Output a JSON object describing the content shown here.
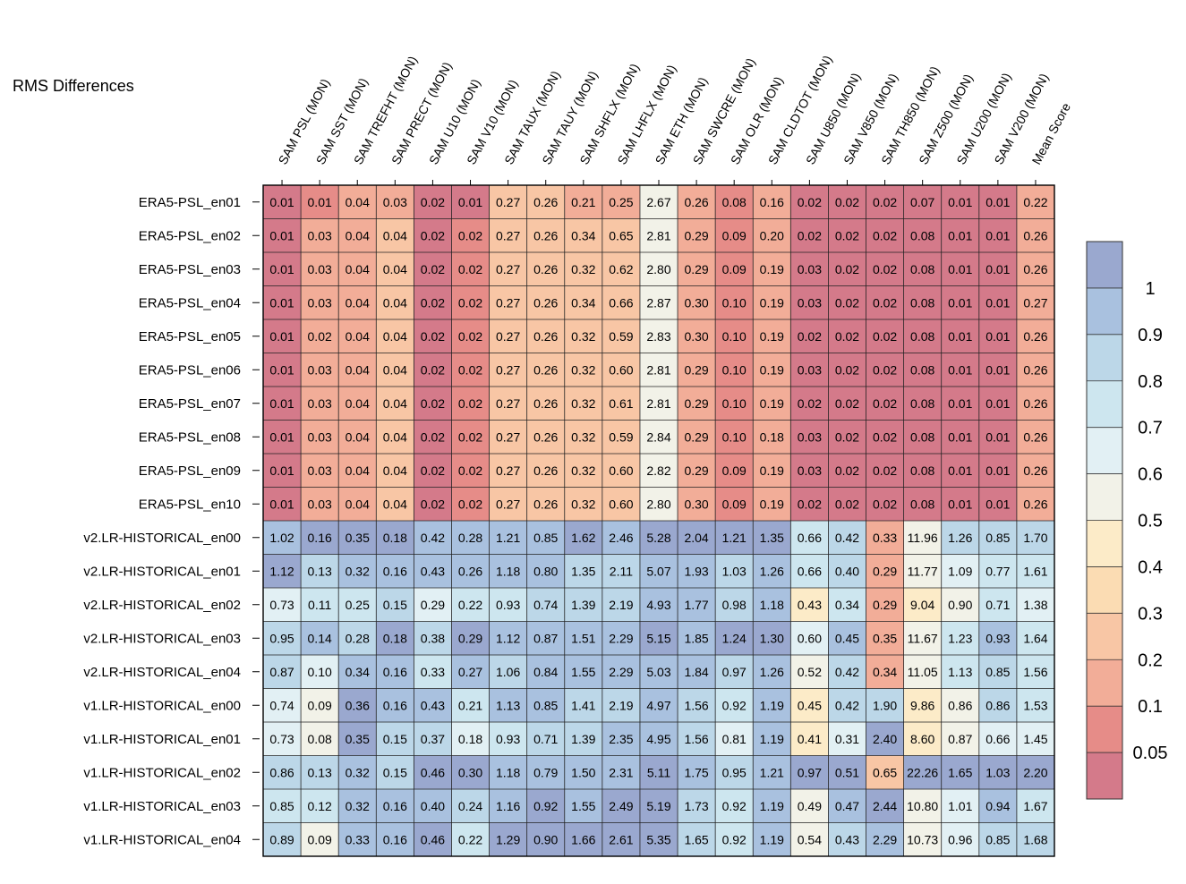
{
  "chart_data": {
    "type": "heatmap",
    "title": "RMS Differences",
    "columns": [
      "SAM PSL (MON)",
      "SAM SST (MON)",
      "SAM TREFHT (MON)",
      "SAM PRECT (MON)",
      "SAM U10 (MON)",
      "SAM V10 (MON)",
      "SAM TAUX (MON)",
      "SAM TAUY (MON)",
      "SAM SHFLX (MON)",
      "SAM LHFLX (MON)",
      "SAM ETH (MON)",
      "SAM SWCRE (MON)",
      "SAM OLR (MON)",
      "SAM CLDTOT (MON)",
      "SAM U850 (MON)",
      "SAM V850 (MON)",
      "SAM TH850 (MON)",
      "SAM Z500 (MON)",
      "SAM U200 (MON)",
      "SAM V200 (MON)",
      "Mean Score"
    ],
    "rows": [
      "ERA5-PSL_en01",
      "ERA5-PSL_en02",
      "ERA5-PSL_en03",
      "ERA5-PSL_en04",
      "ERA5-PSL_en05",
      "ERA5-PSL_en06",
      "ERA5-PSL_en07",
      "ERA5-PSL_en08",
      "ERA5-PSL_en09",
      "ERA5-PSL_en10",
      "v2.LR-HISTORICAL_en00",
      "v2.LR-HISTORICAL_en01",
      "v2.LR-HISTORICAL_en02",
      "v2.LR-HISTORICAL_en03",
      "v2.LR-HISTORICAL_en04",
      "v1.LR-HISTORICAL_en00",
      "v1.LR-HISTORICAL_en01",
      "v1.LR-HISTORICAL_en02",
      "v1.LR-HISTORICAL_en03",
      "v1.LR-HISTORICAL_en04"
    ],
    "values": [
      [
        "0.01",
        "0.01",
        "0.04",
        "0.03",
        "0.02",
        "0.01",
        "0.27",
        "0.26",
        "0.21",
        "0.25",
        "2.67",
        "0.26",
        "0.08",
        "0.16",
        "0.02",
        "0.02",
        "0.02",
        "0.07",
        "0.01",
        "0.01",
        "0.22"
      ],
      [
        "0.01",
        "0.03",
        "0.04",
        "0.04",
        "0.02",
        "0.02",
        "0.27",
        "0.26",
        "0.34",
        "0.65",
        "2.81",
        "0.29",
        "0.09",
        "0.20",
        "0.02",
        "0.02",
        "0.02",
        "0.08",
        "0.01",
        "0.01",
        "0.26"
      ],
      [
        "0.01",
        "0.03",
        "0.04",
        "0.04",
        "0.02",
        "0.02",
        "0.27",
        "0.26",
        "0.32",
        "0.62",
        "2.80",
        "0.29",
        "0.09",
        "0.19",
        "0.03",
        "0.02",
        "0.02",
        "0.08",
        "0.01",
        "0.01",
        "0.26"
      ],
      [
        "0.01",
        "0.03",
        "0.04",
        "0.04",
        "0.02",
        "0.02",
        "0.27",
        "0.26",
        "0.34",
        "0.66",
        "2.87",
        "0.30",
        "0.10",
        "0.19",
        "0.03",
        "0.02",
        "0.02",
        "0.08",
        "0.01",
        "0.01",
        "0.27"
      ],
      [
        "0.01",
        "0.02",
        "0.04",
        "0.04",
        "0.02",
        "0.02",
        "0.27",
        "0.26",
        "0.32",
        "0.59",
        "2.83",
        "0.30",
        "0.10",
        "0.19",
        "0.02",
        "0.02",
        "0.02",
        "0.08",
        "0.01",
        "0.01",
        "0.26"
      ],
      [
        "0.01",
        "0.03",
        "0.04",
        "0.04",
        "0.02",
        "0.02",
        "0.27",
        "0.26",
        "0.32",
        "0.60",
        "2.81",
        "0.29",
        "0.10",
        "0.19",
        "0.03",
        "0.02",
        "0.02",
        "0.08",
        "0.01",
        "0.01",
        "0.26"
      ],
      [
        "0.01",
        "0.03",
        "0.04",
        "0.04",
        "0.02",
        "0.02",
        "0.27",
        "0.26",
        "0.32",
        "0.61",
        "2.81",
        "0.29",
        "0.10",
        "0.19",
        "0.02",
        "0.02",
        "0.02",
        "0.08",
        "0.01",
        "0.01",
        "0.26"
      ],
      [
        "0.01",
        "0.03",
        "0.04",
        "0.04",
        "0.02",
        "0.02",
        "0.27",
        "0.26",
        "0.32",
        "0.59",
        "2.84",
        "0.29",
        "0.10",
        "0.18",
        "0.03",
        "0.02",
        "0.02",
        "0.08",
        "0.01",
        "0.01",
        "0.26"
      ],
      [
        "0.01",
        "0.03",
        "0.04",
        "0.04",
        "0.02",
        "0.02",
        "0.27",
        "0.26",
        "0.32",
        "0.60",
        "2.82",
        "0.29",
        "0.09",
        "0.19",
        "0.03",
        "0.02",
        "0.02",
        "0.08",
        "0.01",
        "0.01",
        "0.26"
      ],
      [
        "0.01",
        "0.03",
        "0.04",
        "0.04",
        "0.02",
        "0.02",
        "0.27",
        "0.26",
        "0.32",
        "0.60",
        "2.80",
        "0.30",
        "0.09",
        "0.19",
        "0.02",
        "0.02",
        "0.02",
        "0.08",
        "0.01",
        "0.01",
        "0.26"
      ],
      [
        "1.02",
        "0.16",
        "0.35",
        "0.18",
        "0.42",
        "0.28",
        "1.21",
        "0.85",
        "1.62",
        "2.46",
        "5.28",
        "2.04",
        "1.21",
        "1.35",
        "0.66",
        "0.42",
        "0.33",
        "11.96",
        "1.26",
        "0.85",
        "1.70"
      ],
      [
        "1.12",
        "0.13",
        "0.32",
        "0.16",
        "0.43",
        "0.26",
        "1.18",
        "0.80",
        "1.35",
        "2.11",
        "5.07",
        "1.93",
        "1.03",
        "1.26",
        "0.66",
        "0.40",
        "0.29",
        "11.77",
        "1.09",
        "0.77",
        "1.61"
      ],
      [
        "0.73",
        "0.11",
        "0.25",
        "0.15",
        "0.29",
        "0.22",
        "0.93",
        "0.74",
        "1.39",
        "2.19",
        "4.93",
        "1.77",
        "0.98",
        "1.18",
        "0.43",
        "0.34",
        "0.29",
        "9.04",
        "0.90",
        "0.71",
        "1.38"
      ],
      [
        "0.95",
        "0.14",
        "0.28",
        "0.18",
        "0.38",
        "0.29",
        "1.12",
        "0.87",
        "1.51",
        "2.29",
        "5.15",
        "1.85",
        "1.24",
        "1.30",
        "0.60",
        "0.45",
        "0.35",
        "11.67",
        "1.23",
        "0.93",
        "1.64"
      ],
      [
        "0.87",
        "0.10",
        "0.34",
        "0.16",
        "0.33",
        "0.27",
        "1.06",
        "0.84",
        "1.55",
        "2.29",
        "5.03",
        "1.84",
        "0.97",
        "1.26",
        "0.52",
        "0.42",
        "0.34",
        "11.05",
        "1.13",
        "0.85",
        "1.56"
      ],
      [
        "0.74",
        "0.09",
        "0.36",
        "0.16",
        "0.43",
        "0.21",
        "1.13",
        "0.85",
        "1.41",
        "2.19",
        "4.97",
        "1.56",
        "0.92",
        "1.19",
        "0.45",
        "0.42",
        "1.90",
        "9.86",
        "0.86",
        "0.86",
        "1.53"
      ],
      [
        "0.73",
        "0.08",
        "0.35",
        "0.15",
        "0.37",
        "0.18",
        "0.93",
        "0.71",
        "1.39",
        "2.35",
        "4.95",
        "1.56",
        "0.81",
        "1.19",
        "0.41",
        "0.31",
        "2.40",
        "8.60",
        "0.87",
        "0.66",
        "1.45"
      ],
      [
        "0.86",
        "0.13",
        "0.32",
        "0.15",
        "0.46",
        "0.30",
        "1.18",
        "0.79",
        "1.50",
        "2.31",
        "5.11",
        "1.75",
        "0.95",
        "1.21",
        "0.97",
        "0.51",
        "0.65",
        "22.26",
        "1.65",
        "1.03",
        "2.20"
      ],
      [
        "0.85",
        "0.12",
        "0.32",
        "0.16",
        "0.40",
        "0.24",
        "1.16",
        "0.92",
        "1.55",
        "2.49",
        "5.19",
        "1.73",
        "0.92",
        "1.19",
        "0.49",
        "0.47",
        "2.44",
        "10.80",
        "1.01",
        "0.94",
        "1.67"
      ],
      [
        "0.89",
        "0.09",
        "0.33",
        "0.16",
        "0.46",
        "0.22",
        "1.29",
        "0.90",
        "1.66",
        "2.61",
        "5.35",
        "1.65",
        "0.92",
        "1.19",
        "0.54",
        "0.43",
        "2.29",
        "10.73",
        "0.96",
        "0.85",
        "1.68"
      ]
    ],
    "colorbar": {
      "labels": [
        "1",
        "0.9",
        "0.8",
        "0.7",
        "0.6",
        "0.5",
        "0.4",
        "0.3",
        "0.2",
        "0.1",
        "0.05"
      ],
      "bins": [
        {
          "min": 1.0,
          "color": "#9aa8cf"
        },
        {
          "min": 0.9,
          "color": "#a9c1df"
        },
        {
          "min": 0.8,
          "color": "#bcd7e8"
        },
        {
          "min": 0.7,
          "color": "#cde6ef"
        },
        {
          "min": 0.6,
          "color": "#e2f0f4"
        },
        {
          "min": 0.5,
          "color": "#f2f2e8"
        },
        {
          "min": 0.4,
          "color": "#fcebc8"
        },
        {
          "min": 0.3,
          "color": "#fbdcb3"
        },
        {
          "min": 0.2,
          "color": "#f8c6a5"
        },
        {
          "min": 0.1,
          "color": "#f2ad98"
        },
        {
          "min": 0.05,
          "color": "#e68c88"
        },
        {
          "min": 0.0,
          "color": "#d47a8a"
        }
      ]
    }
  }
}
